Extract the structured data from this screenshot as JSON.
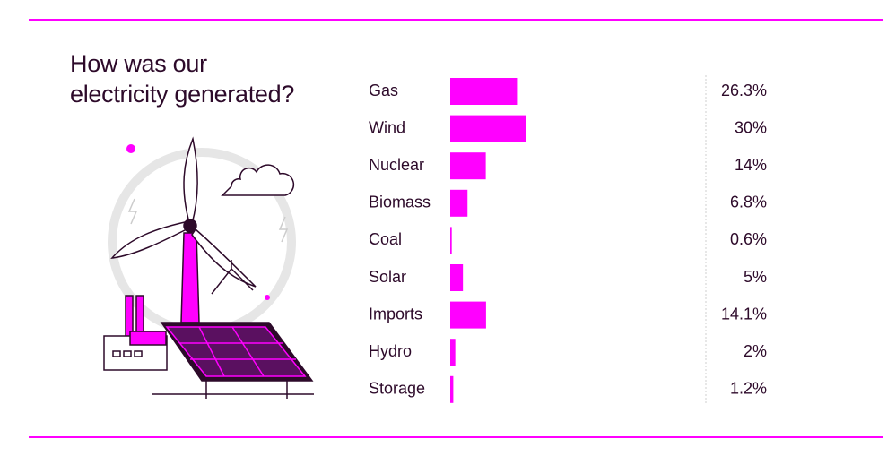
{
  "chart_data": {
    "type": "bar",
    "orientation": "horizontal",
    "title": "How was our\nelectricity generated?",
    "categories": [
      "Gas",
      "Wind",
      "Nuclear",
      "Biomass",
      "Coal",
      "Solar",
      "Imports",
      "Hydro",
      "Storage"
    ],
    "values": [
      26.3,
      30,
      14,
      6.8,
      0.6,
      5,
      14.1,
      2,
      1.2
    ],
    "value_labels": [
      "26.3%",
      "30%",
      "14%",
      "6.8%",
      "0.6%",
      "5%",
      "14.1%",
      "2%",
      "1.2%"
    ],
    "color": "#ff00ff"
  }
}
